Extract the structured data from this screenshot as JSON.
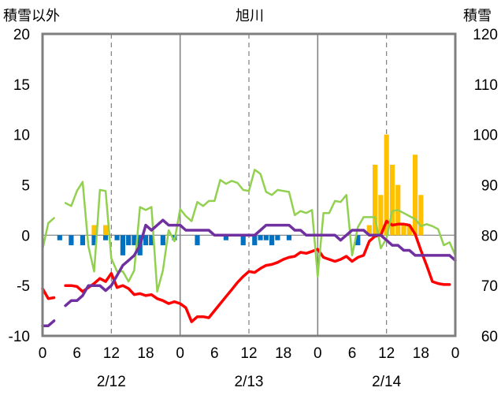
{
  "chart_data": {
    "type": "line",
    "title": "旭川",
    "y_left_label": "積雪以外",
    "y_right_label": "積雪",
    "y_left": {
      "min": -10,
      "max": 20,
      "ticks": [
        "-10",
        "-5",
        "0",
        "5",
        "10",
        "15",
        "20"
      ]
    },
    "y_right": {
      "min": 60,
      "max": 120,
      "ticks": [
        "60",
        "70",
        "80",
        "90",
        "100",
        "110",
        "120"
      ]
    },
    "x": {
      "min": 0,
      "max": 72,
      "ticks": [
        "0",
        "6",
        "12",
        "18",
        "0",
        "6",
        "12",
        "18",
        "0",
        "6",
        "12",
        "18",
        "0"
      ]
    },
    "x_tick_hours": [
      0,
      6,
      12,
      18,
      24,
      30,
      36,
      42,
      48,
      54,
      60,
      66,
      72
    ],
    "dates": [
      {
        "label": "2/12",
        "hour": 12
      },
      {
        "label": "2/13",
        "hour": 36
      },
      {
        "label": "2/14",
        "hour": 60
      }
    ],
    "day_dividers": [
      24,
      48
    ],
    "grid_dashed_hours": [
      12,
      36,
      60
    ],
    "colors": {
      "temperature": "#ff0000",
      "humidity_index": "#92d050",
      "snow_depth": "#7030a0",
      "snowfall": "#ffc000",
      "sunshine_negative": "#0070c0"
    },
    "series": [
      {
        "key": "temperature",
        "axis": "left",
        "points": [
          [
            0,
            -5.3
          ],
          [
            1,
            -6.3
          ],
          [
            2,
            -6.2
          ],
          [
            null,
            null
          ],
          [
            4,
            -5
          ],
          [
            5,
            -5
          ],
          [
            6,
            -5.1
          ],
          [
            7,
            -5.6
          ],
          [
            8,
            -5.2
          ],
          [
            9,
            -4.8
          ],
          [
            10,
            -4.3
          ],
          [
            11,
            -4.6
          ],
          [
            12,
            -3.8
          ],
          [
            13,
            -5.2
          ],
          [
            14,
            -5
          ],
          [
            15,
            -5.3
          ],
          [
            16,
            -5.9
          ],
          [
            17,
            -5.8
          ],
          [
            18,
            -6
          ],
          [
            19,
            -5.9
          ],
          [
            20,
            -6.3
          ],
          [
            21,
            -6.5
          ],
          [
            22,
            -6.8
          ],
          [
            23,
            -6.6
          ],
          [
            24,
            -6.8
          ],
          [
            25,
            -7.2
          ],
          [
            26,
            -8.6
          ],
          [
            27,
            -8.1
          ],
          [
            28,
            -8.1
          ],
          [
            29,
            -8.2
          ],
          [
            30,
            -7.5
          ],
          [
            31,
            -6.8
          ],
          [
            32,
            -6.1
          ],
          [
            33,
            -5.4
          ],
          [
            34,
            -4.7
          ],
          [
            35,
            -4.1
          ],
          [
            36,
            -3.6
          ],
          [
            37,
            -3.7
          ],
          [
            38,
            -3.3
          ],
          [
            39,
            -3
          ],
          [
            40,
            -2.9
          ],
          [
            41,
            -2.7
          ],
          [
            42,
            -2.4
          ],
          [
            43,
            -2.2
          ],
          [
            44,
            -2.1
          ],
          [
            45,
            -1.7
          ],
          [
            46,
            -1.8
          ],
          [
            47,
            -1.6
          ],
          [
            48,
            -1.4
          ],
          [
            49,
            -2.2
          ],
          [
            50,
            -2.4
          ],
          [
            51,
            -2.6
          ],
          [
            52,
            -2.4
          ],
          [
            53,
            -2.1
          ],
          [
            54,
            -2.6
          ],
          [
            55,
            -2.2
          ],
          [
            56,
            -2
          ],
          [
            57,
            -0.6
          ],
          [
            58,
            -0.1
          ],
          [
            59,
            0
          ],
          [
            60,
            1.4
          ],
          [
            61,
            1
          ],
          [
            62,
            1.1
          ],
          [
            63,
            1.1
          ],
          [
            64,
            1
          ],
          [
            65,
            0.1
          ],
          [
            66,
            -1.5
          ],
          [
            67,
            -3
          ],
          [
            68,
            -4.6
          ],
          [
            69,
            -4.8
          ],
          [
            70,
            -4.9
          ],
          [
            71,
            -4.9
          ]
        ]
      },
      {
        "key": "humidity_index",
        "axis": "left",
        "points": [
          [
            0,
            -1.4
          ],
          [
            1,
            1.2
          ],
          [
            2,
            1.7
          ],
          [
            null,
            null
          ],
          [
            4,
            3.2
          ],
          [
            5,
            2.9
          ],
          [
            6,
            4.4
          ],
          [
            7,
            5.3
          ],
          [
            8,
            -1.1
          ],
          [
            9,
            -3.6
          ],
          [
            10,
            4.5
          ],
          [
            11,
            4.4
          ],
          [
            12,
            -2.3
          ],
          [
            13,
            -3.6
          ],
          [
            14,
            -3.6
          ],
          [
            15,
            -4.6
          ],
          [
            16,
            -3.5
          ],
          [
            17,
            2.8
          ],
          [
            18,
            2.5
          ],
          [
            19,
            2.8
          ],
          [
            20,
            -5.6
          ],
          [
            21,
            -3.5
          ],
          [
            22,
            0.5
          ],
          [
            23,
            -0.6
          ],
          [
            24,
            2.6
          ],
          [
            25,
            1.9
          ],
          [
            26,
            1.4
          ],
          [
            27,
            3.3
          ],
          [
            28,
            2.9
          ],
          [
            29,
            3.4
          ],
          [
            30,
            3.4
          ],
          [
            31,
            5.5
          ],
          [
            32,
            5.1
          ],
          [
            33,
            5.4
          ],
          [
            34,
            5.2
          ],
          [
            35,
            4.5
          ],
          [
            36,
            4.4
          ],
          [
            37,
            6.5
          ],
          [
            38,
            6.1
          ],
          [
            39,
            4.3
          ],
          [
            40,
            4
          ],
          [
            41,
            4.5
          ],
          [
            42,
            4.4
          ],
          [
            43,
            4.3
          ],
          [
            44,
            2
          ],
          [
            45,
            2.4
          ],
          [
            46,
            2.2
          ],
          [
            47,
            2.5
          ],
          [
            48,
            -4.1
          ],
          [
            49,
            2.2
          ],
          [
            50,
            2.2
          ],
          [
            51,
            3.4
          ],
          [
            52,
            3.3
          ],
          [
            53,
            4
          ],
          [
            54,
            -2
          ],
          [
            55,
            0.8
          ],
          [
            56,
            1.8
          ],
          [
            57,
            1.8
          ],
          [
            58,
            1.8
          ],
          [
            59,
            -1.3
          ],
          [
            60,
            -0.3
          ],
          [
            61,
            2.4
          ],
          [
            62,
            2.5
          ],
          [
            63,
            2.2
          ],
          [
            64,
            1.9
          ],
          [
            65,
            1.6
          ],
          [
            66,
            0.9
          ],
          [
            67,
            1.1
          ],
          [
            68,
            0.9
          ],
          [
            69,
            0.6
          ],
          [
            70,
            -1
          ],
          [
            71,
            -0.7
          ],
          [
            72,
            -2
          ]
        ]
      },
      {
        "key": "snow_depth",
        "axis": "right",
        "points": [
          [
            0,
            62
          ],
          [
            1,
            62
          ],
          [
            2,
            63
          ],
          [
            null,
            null
          ],
          [
            4,
            66
          ],
          [
            5,
            67
          ],
          [
            6,
            67
          ],
          [
            7,
            68
          ],
          [
            8,
            70
          ],
          [
            9,
            70
          ],
          [
            10,
            70
          ],
          [
            11,
            69
          ],
          [
            12,
            70
          ],
          [
            13,
            72
          ],
          [
            14,
            74
          ],
          [
            15,
            75
          ],
          [
            16,
            76
          ],
          [
            17,
            78
          ],
          [
            18,
            82
          ],
          [
            19,
            81
          ],
          [
            20,
            82
          ],
          [
            21,
            83
          ],
          [
            22,
            82
          ],
          [
            23,
            82
          ],
          [
            24,
            82
          ],
          [
            25,
            81
          ],
          [
            26,
            81
          ],
          [
            27,
            81
          ],
          [
            28,
            81
          ],
          [
            29,
            81
          ],
          [
            30,
            80
          ],
          [
            31,
            80
          ],
          [
            32,
            80
          ],
          [
            33,
            80
          ],
          [
            34,
            80
          ],
          [
            35,
            80
          ],
          [
            36,
            80
          ],
          [
            37,
            80
          ],
          [
            38,
            81
          ],
          [
            39,
            82
          ],
          [
            40,
            82
          ],
          [
            41,
            82
          ],
          [
            42,
            82
          ],
          [
            43,
            82
          ],
          [
            44,
            81
          ],
          [
            45,
            81
          ],
          [
            46,
            80
          ],
          [
            47,
            80
          ],
          [
            48,
            80
          ],
          [
            49,
            80
          ],
          [
            50,
            80
          ],
          [
            51,
            80
          ],
          [
            52,
            79
          ],
          [
            53,
            80
          ],
          [
            54,
            81
          ],
          [
            55,
            81
          ],
          [
            56,
            81
          ],
          [
            57,
            80
          ],
          [
            58,
            80
          ],
          [
            59,
            80
          ],
          [
            60,
            79
          ],
          [
            61,
            78
          ],
          [
            62,
            78
          ],
          [
            63,
            77
          ],
          [
            64,
            77
          ],
          [
            65,
            76
          ],
          [
            66,
            76
          ],
          [
            67,
            76
          ],
          [
            68,
            76
          ],
          [
            69,
            76
          ],
          [
            70,
            76
          ],
          [
            71,
            76
          ],
          [
            72,
            75
          ]
        ]
      }
    ],
    "bars": [
      {
        "key": "snowfall",
        "axis": "left",
        "data": [
          [
            9,
            1
          ],
          [
            11,
            1
          ],
          [
            57,
            1
          ],
          [
            58,
            7
          ],
          [
            59,
            4
          ],
          [
            60,
            10
          ],
          [
            61,
            7
          ],
          [
            62,
            5
          ],
          [
            63,
            1
          ],
          [
            64,
            1
          ],
          [
            65,
            8
          ],
          [
            66,
            4
          ]
        ]
      },
      {
        "key": "sunshine_negative",
        "axis": "left",
        "data": [
          [
            3,
            -0.5
          ],
          [
            5,
            -1
          ],
          [
            7,
            -1
          ],
          [
            9,
            -1
          ],
          [
            11,
            -0.5
          ],
          [
            13,
            -0.5
          ],
          [
            14,
            -2
          ],
          [
            15,
            -1
          ],
          [
            16,
            -1
          ],
          [
            17,
            -2
          ],
          [
            18,
            -1
          ],
          [
            19,
            -1
          ],
          [
            21,
            -1
          ],
          [
            23,
            -0.5
          ],
          [
            27,
            -1
          ],
          [
            32,
            -0.5
          ],
          [
            35,
            -1
          ],
          [
            37,
            -1
          ],
          [
            38,
            -0.5
          ],
          [
            39,
            -0.5
          ],
          [
            40,
            -1
          ],
          [
            41,
            -0.5
          ],
          [
            43,
            -0.5
          ],
          [
            55,
            -1
          ]
        ]
      }
    ]
  }
}
